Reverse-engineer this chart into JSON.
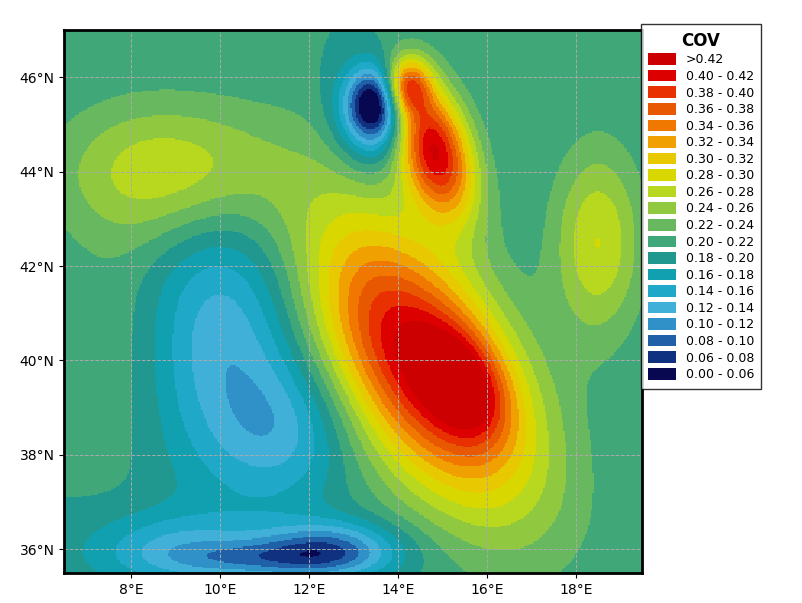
{
  "title": "COV",
  "lon_min": 6.5,
  "lon_max": 19.5,
  "lat_min": 35.5,
  "lat_max": 47.0,
  "xticks": [
    8,
    10,
    12,
    14,
    16,
    18
  ],
  "yticks": [
    36,
    38,
    40,
    42,
    44,
    46
  ],
  "xlabel_format": "{}°E",
  "ylabel_format": "{}°N",
  "cov_bounds": [
    0.0,
    0.06,
    0.08,
    0.1,
    0.12,
    0.14,
    0.16,
    0.18,
    0.2,
    0.22,
    0.24,
    0.26,
    0.28,
    0.3,
    0.32,
    0.34,
    0.36,
    0.38,
    0.4,
    0.42,
    0.99
  ],
  "cov_labels": [
    ">0.42",
    "0.40 - 0.42",
    "0.38 - 0.40",
    "0.36 - 0.38",
    "0.34 - 0.36",
    "0.32 - 0.34",
    "0.30 - 0.32",
    "0.28 - 0.30",
    "0.26 - 0.28",
    "0.24 - 0.26",
    "0.22 - 0.24",
    "0.20 - 0.22",
    "0.18 - 0.20",
    "0.16 - 0.18",
    "0.14 - 0.16",
    "0.12 - 0.14",
    "0.10 - 0.12",
    "0.08 - 0.10",
    "0.06 - 0.08",
    "0.00 - 0.06"
  ],
  "cov_colors": [
    "#cc0000",
    "#dd0000",
    "#e83000",
    "#e85800",
    "#f07800",
    "#f0a000",
    "#e8c800",
    "#d8d800",
    "#b8d820",
    "#90c840",
    "#68b860",
    "#40a878",
    "#209890",
    "#10a0b0",
    "#20a8c8",
    "#40b0d8",
    "#3090c8",
    "#2060a8",
    "#103080",
    "#080850"
  ],
  "grid_color": "#aaaaaa",
  "grid_linestyle": "--",
  "grid_linewidth": 0.7,
  "border_color": "black",
  "border_linewidth": 2.0,
  "tick_fontsize": 10,
  "legend_title_fontsize": 12,
  "legend_fontsize": 9,
  "figsize": [
    8.03,
    6.03
  ],
  "dpi": 100
}
